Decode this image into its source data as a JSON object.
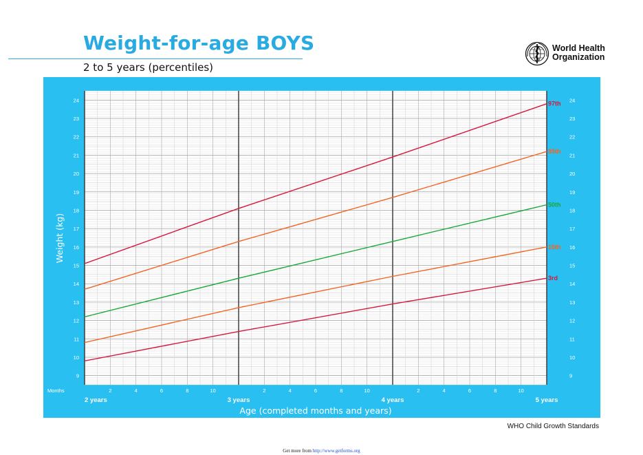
{
  "header": {
    "title": "Weight-for-age BOYS",
    "subtitle": "2 to 5 years (percentiles)",
    "org_name_line1": "World Health",
    "org_name_line2": "Organization",
    "org_logo_icon": "who-emblem-icon"
  },
  "footer": {
    "standards": "WHO Child Growth Standards",
    "more_prefix": "Get more from ",
    "more_url": "http://www.getforms.org"
  },
  "colors": {
    "title": "#29abe2",
    "panel": "#29bff0",
    "grid_bg": "#ffffff",
    "p97": "#d6173a",
    "p85": "#f26522",
    "p50": "#18a83a",
    "p15": "#f26522",
    "p3": "#d6173a"
  },
  "chart_data": {
    "type": "line",
    "title": "Weight-for-age BOYS",
    "subtitle": "2 to 5 years (percentiles)",
    "xlabel": "Age (completed months and years)",
    "ylabel": "Weight (kg)",
    "x_unit_label": "Months",
    "xlim": [
      24,
      60
    ],
    "ylim": [
      8.5,
      24.5
    ],
    "grid": true,
    "minor_tick_labels": [
      "2",
      "4",
      "6",
      "8",
      "10"
    ],
    "year_labels": [
      {
        "month": 24,
        "label": "2 years"
      },
      {
        "month": 36,
        "label": "3 years"
      },
      {
        "month": 48,
        "label": "4 years"
      },
      {
        "month": 60,
        "label": "5 years"
      }
    ],
    "y_ticks": [
      9,
      10,
      11,
      12,
      13,
      14,
      15,
      16,
      17,
      18,
      19,
      20,
      21,
      22,
      23,
      24
    ],
    "series": [
      {
        "name": "97th",
        "color": "#d6173a",
        "x": [
          24,
          36,
          48,
          60
        ],
        "values": [
          15.1,
          18.1,
          20.9,
          23.8
        ]
      },
      {
        "name": "85th",
        "color": "#f26522",
        "x": [
          24,
          36,
          48,
          60
        ],
        "values": [
          13.7,
          16.3,
          18.7,
          21.2
        ]
      },
      {
        "name": "50th",
        "color": "#18a83a",
        "x": [
          24,
          36,
          48,
          60
        ],
        "values": [
          12.2,
          14.3,
          16.3,
          18.3
        ]
      },
      {
        "name": "15th",
        "color": "#f26522",
        "x": [
          24,
          36,
          48,
          60
        ],
        "values": [
          10.8,
          12.7,
          14.4,
          16.0
        ]
      },
      {
        "name": "3rd",
        "color": "#d6173a",
        "x": [
          24,
          36,
          48,
          60
        ],
        "values": [
          9.8,
          11.4,
          12.9,
          14.3
        ]
      }
    ]
  }
}
